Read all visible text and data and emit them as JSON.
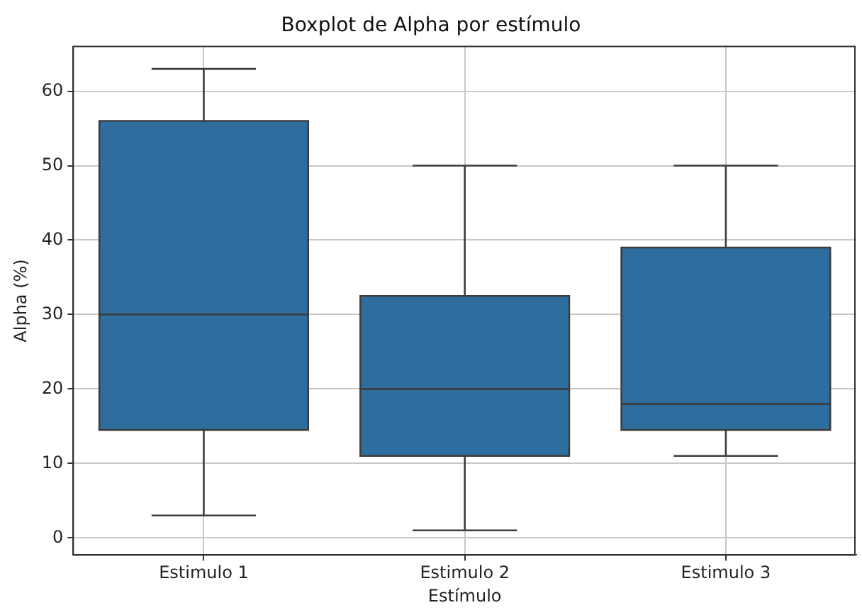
{
  "chart_data": {
    "type": "box",
    "title": "Boxplot de Alpha por estímulo",
    "xlabel": "Estímulo",
    "ylabel": "Alpha (%)",
    "categories": [
      "Estimulo 1",
      "Estimulo 2",
      "Estimulo 3"
    ],
    "boxes": [
      {
        "low": 3,
        "q1": 14.5,
        "median": 30,
        "q3": 56,
        "high": 63
      },
      {
        "low": 1,
        "q1": 11,
        "median": 20,
        "q3": 32.5,
        "high": 50
      },
      {
        "low": 11,
        "q1": 14.5,
        "median": 18,
        "q3": 39,
        "high": 50
      }
    ],
    "color": "#2e6e9e",
    "ylim": [
      -2.3,
      66
    ],
    "yticks": [
      0,
      10,
      20,
      30,
      40,
      50,
      60
    ],
    "grid": true,
    "legend": false
  }
}
